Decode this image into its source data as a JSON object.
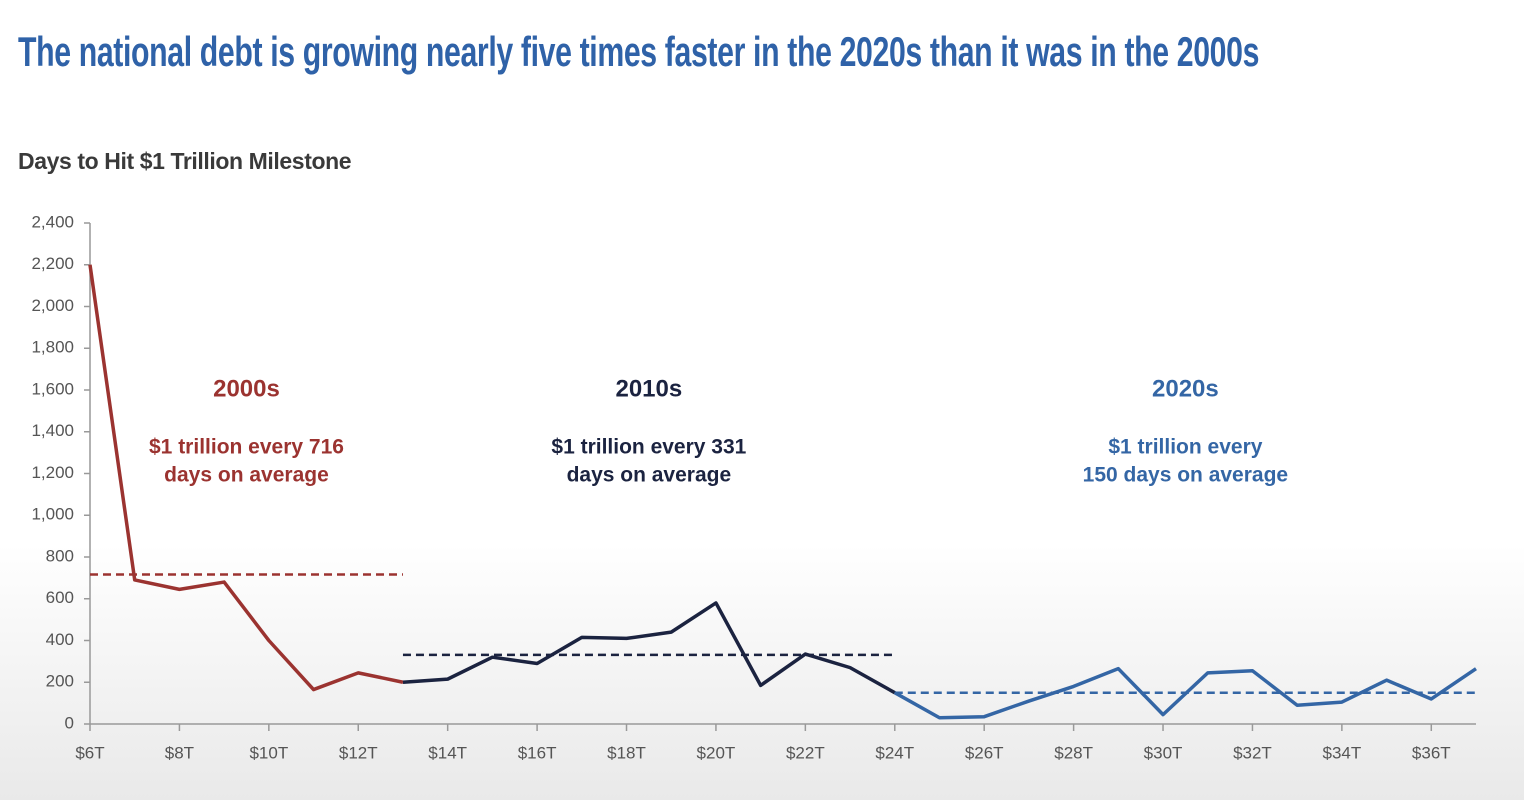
{
  "chart_data": {
    "type": "line",
    "title": "The national debt is growing nearly five times faster in the 2020s than it was in the 2000s",
    "subtitle": "Days to Hit $1 Trillion Milestone",
    "xlim": [
      6,
      37
    ],
    "xticks": [
      {
        "value": 6,
        "label": "$6T"
      },
      {
        "value": 8,
        "label": "$8T"
      },
      {
        "value": 10,
        "label": "$10T"
      },
      {
        "value": 12,
        "label": "$12T"
      },
      {
        "value": 14,
        "label": "$14T"
      },
      {
        "value": 16,
        "label": "$16T"
      },
      {
        "value": 18,
        "label": "$18T"
      },
      {
        "value": 20,
        "label": "$20T"
      },
      {
        "value": 22,
        "label": "$22T"
      },
      {
        "value": 24,
        "label": "$24T"
      },
      {
        "value": 26,
        "label": "$26T"
      },
      {
        "value": 28,
        "label": "$28T"
      },
      {
        "value": 30,
        "label": "$30T"
      },
      {
        "value": 32,
        "label": "$32T"
      },
      {
        "value": 34,
        "label": "$34T"
      },
      {
        "value": 36,
        "label": "$36T"
      }
    ],
    "ylim": [
      0,
      2400
    ],
    "yticks": [
      0,
      200,
      400,
      600,
      800,
      {
        "value": 1000,
        "label": "1,000"
      },
      {
        "value": 1200,
        "label": "1,200"
      },
      {
        "value": 1400,
        "label": "1,400"
      },
      {
        "value": 1600,
        "label": "1,600"
      },
      {
        "value": 1800,
        "label": "1,800"
      },
      {
        "value": 2000,
        "label": "2,000"
      },
      {
        "value": 2200,
        "label": "2,200"
      },
      {
        "value": 2400,
        "label": "2,400"
      }
    ],
    "series": [
      {
        "name": "2000s",
        "color": "#9b3330",
        "x": [
          6,
          7,
          8,
          9,
          10,
          11,
          12,
          13
        ],
        "values": [
          2200,
          690,
          645,
          680,
          400,
          165,
          245,
          200
        ],
        "average": 716,
        "annotation": [
          "$1 trillion every 716",
          "days on average"
        ]
      },
      {
        "name": "2010s",
        "color": "#1b2340",
        "x": [
          13,
          14,
          15,
          16,
          17,
          18,
          19,
          20,
          21,
          22,
          23,
          24
        ],
        "values": [
          200,
          215,
          320,
          290,
          415,
          410,
          440,
          580,
          185,
          335,
          270,
          150
        ],
        "average": 331,
        "annotation": [
          "$1 trillion every 331",
          "days on average"
        ]
      },
      {
        "name": "2020s",
        "color": "#3466a5",
        "x": [
          24,
          25,
          26,
          27,
          28,
          29,
          30,
          31,
          32,
          33,
          34,
          35,
          36,
          37
        ],
        "values": [
          150,
          30,
          35,
          110,
          180,
          265,
          45,
          245,
          255,
          90,
          105,
          210,
          120,
          265
        ],
        "average": 150,
        "annotation": [
          "$1 trillion every",
          "150 days on average"
        ]
      }
    ]
  }
}
